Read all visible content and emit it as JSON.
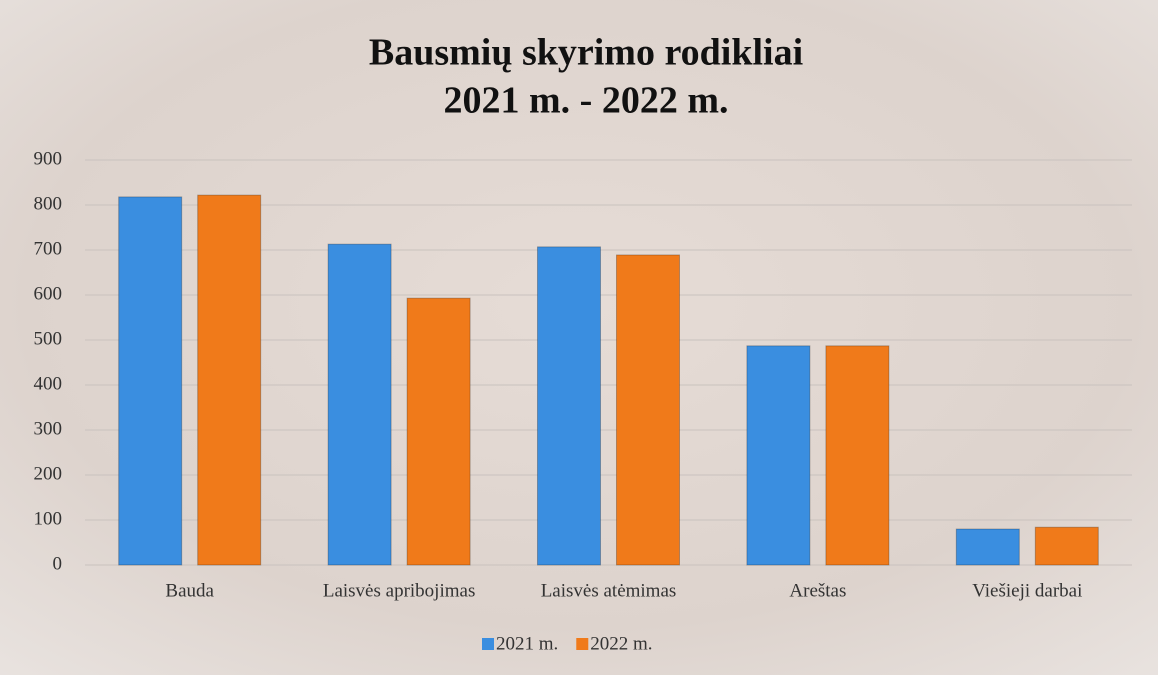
{
  "chart_data": {
    "type": "bar",
    "title": "Bausmių skyrimo rodikliai",
    "subtitle": "2021 m. - 2022 m.",
    "categories": [
      "Bauda",
      "Laisvės apribojimas",
      "Laisvės atėmimas",
      "Areštas",
      "Viešieji darbai"
    ],
    "series": [
      {
        "name": "2021 m.",
        "color": "#3a8ee0",
        "values": [
          818,
          713,
          707,
          487,
          80
        ]
      },
      {
        "name": "2022 m.",
        "color": "#f07a1a",
        "values": [
          822,
          593,
          689,
          487,
          84
        ]
      }
    ],
    "ylim": [
      0,
      900
    ],
    "yticks": [
      0,
      100,
      200,
      300,
      400,
      500,
      600,
      700,
      800,
      900
    ],
    "grid": true,
    "legend": "bottom"
  }
}
